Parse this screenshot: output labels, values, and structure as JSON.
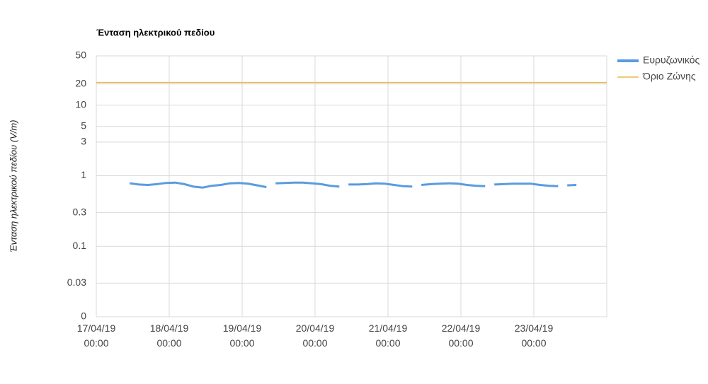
{
  "chart_data": {
    "type": "line",
    "title": "Ένταση ηλεκτρικού πεδίου",
    "y_label": "Ένταση ηλεκτρικού πεδίου (V/m)",
    "log_y": true,
    "grid": true,
    "legend": "right",
    "ylim": [
      0.01,
      50
    ],
    "yticks": [
      {
        "value": 0.01,
        "label": "0"
      },
      0.03,
      0.1,
      0.3,
      1,
      3,
      5,
      10,
      20,
      50
    ],
    "xlim": [
      "2019-04-17T00:00",
      "2019-04-24T00:00"
    ],
    "xticks": [
      {
        "value": "2019-04-17T00:00",
        "label": "17/04/19 00:00"
      },
      {
        "value": "2019-04-18T00:00",
        "label": "18/04/19 00:00"
      },
      {
        "value": "2019-04-19T00:00",
        "label": "19/04/19 00:00"
      },
      {
        "value": "2019-04-20T00:00",
        "label": "20/04/19 00:00"
      },
      {
        "value": "2019-04-21T00:00",
        "label": "21/04/19 00:00"
      },
      {
        "value": "2019-04-22T00:00",
        "label": "22/04/19 00:00"
      },
      {
        "value": "2019-04-23T00:00",
        "label": "23/04/19 00:00"
      }
    ],
    "series": [
      {
        "name": "Ευρυζωνικός",
        "color": "#5b9bdf",
        "x": [
          "2019-04-17T11:00",
          "2019-04-17T14:00",
          "2019-04-17T17:00",
          "2019-04-17T20:00",
          "2019-04-17T23:00",
          "2019-04-18T02:00",
          "2019-04-18T05:00",
          "2019-04-18T08:00",
          "2019-04-18T11:00",
          "2019-04-18T14:00",
          "2019-04-18T17:00",
          "2019-04-18T20:00",
          "2019-04-18T23:00",
          "2019-04-19T02:00",
          "2019-04-19T05:00",
          "2019-04-19T08:00",
          "2019-04-19T09:30",
          "2019-04-19T11:00",
          "2019-04-19T14:00",
          "2019-04-19T17:00",
          "2019-04-19T20:00",
          "2019-04-19T23:00",
          "2019-04-20T02:00",
          "2019-04-20T05:00",
          "2019-04-20T08:00",
          "2019-04-20T09:30",
          "2019-04-20T11:00",
          "2019-04-20T14:00",
          "2019-04-20T17:00",
          "2019-04-20T20:00",
          "2019-04-20T23:00",
          "2019-04-21T02:00",
          "2019-04-21T05:00",
          "2019-04-21T08:00",
          "2019-04-21T09:30",
          "2019-04-21T11:00",
          "2019-04-21T14:00",
          "2019-04-21T17:00",
          "2019-04-21T20:00",
          "2019-04-21T23:00",
          "2019-04-22T02:00",
          "2019-04-22T05:00",
          "2019-04-22T08:00",
          "2019-04-22T09:30",
          "2019-04-22T11:00",
          "2019-04-22T14:00",
          "2019-04-22T17:00",
          "2019-04-22T20:00",
          "2019-04-22T23:00",
          "2019-04-23T02:00",
          "2019-04-23T05:00",
          "2019-04-23T08:00",
          "2019-04-23T09:30",
          "2019-04-23T11:00",
          "2019-04-23T14:00"
        ],
        "values": [
          0.78,
          0.75,
          0.74,
          0.76,
          0.79,
          0.8,
          0.76,
          0.7,
          0.68,
          0.72,
          0.74,
          0.78,
          0.79,
          0.77,
          0.73,
          0.69,
          null,
          0.78,
          0.79,
          0.8,
          0.8,
          0.78,
          0.76,
          0.72,
          0.7,
          null,
          0.75,
          0.75,
          0.76,
          0.78,
          0.77,
          0.74,
          0.71,
          0.7,
          null,
          0.74,
          0.76,
          0.77,
          0.78,
          0.77,
          0.74,
          0.72,
          0.71,
          null,
          0.75,
          0.76,
          0.77,
          0.77,
          0.77,
          0.74,
          0.72,
          0.71,
          null,
          0.73,
          0.74
        ]
      },
      {
        "name": "Όριο Ζώνης",
        "color": "#e8b84a",
        "x": [
          "2019-04-17T00:00",
          "2019-04-24T00:00"
        ],
        "values": [
          21,
          21
        ]
      }
    ]
  }
}
